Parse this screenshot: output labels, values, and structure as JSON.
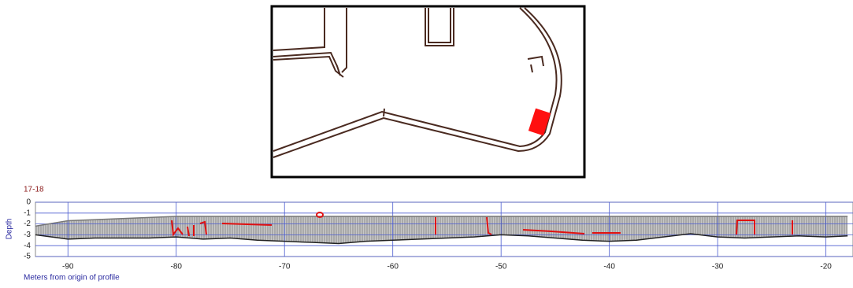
{
  "chart_data": {
    "type": "line",
    "title": "17-18",
    "ylabel": "Depth",
    "xlabel": "Meters from origin of profile",
    "x": [
      -93,
      -90,
      -87.5,
      -85,
      -82.5,
      -80,
      -77.5,
      -75,
      -72.5,
      -70,
      -67.5,
      -65,
      -62.5,
      -60,
      -57.5,
      -55,
      -52.5,
      -50,
      -47.5,
      -45,
      -42.5,
      -40,
      -37.5,
      -35,
      -32.5,
      -30,
      -27.5,
      -25,
      -22.5,
      -20,
      -18
    ],
    "series": [
      {
        "color": "#777777",
        "values": [
          -2.2,
          -1.7,
          -1.6,
          -1.5,
          -1.4,
          -1.3,
          -1.3,
          -1.3,
          -1.3,
          -1.3,
          -1.3,
          -1.3,
          -1.3,
          -1.3,
          -1.3,
          -1.3,
          -1.3,
          -1.3,
          -1.3,
          -1.3,
          -1.3,
          -1.3,
          -1.3,
          -1.3,
          -1.3,
          -1.3,
          -1.3,
          -1.3,
          -1.3,
          -1.3,
          -1.3
        ]
      },
      {
        "color": "#222222",
        "values": [
          -3.0,
          -3.4,
          -3.3,
          -3.3,
          -3.3,
          -3.2,
          -3.4,
          -3.3,
          -3.5,
          -3.6,
          -3.7,
          -3.8,
          -3.6,
          -3.5,
          -3.4,
          -3.3,
          -3.2,
          -3.0,
          -3.1,
          -3.3,
          -3.5,
          -3.6,
          -3.5,
          -3.2,
          -2.9,
          -3.2,
          -3.3,
          -3.2,
          -3.1,
          -3.2,
          -3.1
        ]
      }
    ],
    "xlim": [
      -93,
      -17.5
    ],
    "ylim": [
      -5,
      0
    ],
    "xticks": [
      -90,
      -80,
      -70,
      -60,
      -50,
      -40,
      -30,
      -20
    ],
    "yticks": [
      0,
      -1,
      -2,
      -3,
      -4,
      -5
    ],
    "grid": true,
    "grid_color": "#4a5bd0"
  }
}
